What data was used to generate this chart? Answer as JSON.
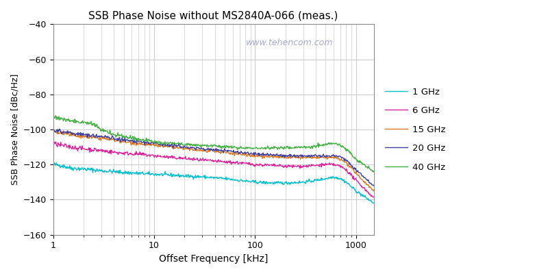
{
  "title": "SSB Phase Noise without MS2840A-066 (meas.)",
  "xlabel": "Offset Frequency [kHz]",
  "ylabel": "SSB Phase Noise [dBc/Hz]",
  "ylim": [
    -160,
    -40
  ],
  "xlim": [
    1,
    1500
  ],
  "yticks": [
    -160,
    -140,
    -120,
    -100,
    -80,
    -60,
    -40
  ],
  "watermark": "www.tehencom.com",
  "watermark_color": "#9999cc",
  "background_color": "#ffffff",
  "grid_color": "#cccccc",
  "series": [
    {
      "label": "1 GHz",
      "color": "#00c0d0",
      "points": [
        [
          1.0,
          -120
        ],
        [
          1.2,
          -120.5
        ],
        [
          1.5,
          -122
        ],
        [
          2,
          -122.5
        ],
        [
          3,
          -123.5
        ],
        [
          4,
          -124
        ],
        [
          5,
          -124.5
        ],
        [
          7,
          -125
        ],
        [
          10,
          -125.5
        ],
        [
          15,
          -126
        ],
        [
          20,
          -126.5
        ],
        [
          30,
          -127
        ],
        [
          50,
          -128
        ],
        [
          70,
          -129
        ],
        [
          100,
          -130
        ],
        [
          150,
          -130.5
        ],
        [
          200,
          -130.5
        ],
        [
          300,
          -130
        ],
        [
          400,
          -129
        ],
        [
          500,
          -128
        ],
        [
          600,
          -127
        ],
        [
          700,
          -128
        ],
        [
          800,
          -130
        ],
        [
          1000,
          -135
        ],
        [
          1500,
          -142
        ]
      ]
    },
    {
      "label": "6 GHz",
      "color": "#e0209a",
      "points": [
        [
          1.0,
          -108
        ],
        [
          1.2,
          -109
        ],
        [
          1.5,
          -110
        ],
        [
          2,
          -111
        ],
        [
          3,
          -112
        ],
        [
          4,
          -113
        ],
        [
          5,
          -113.5
        ],
        [
          7,
          -114
        ],
        [
          10,
          -115
        ],
        [
          15,
          -116
        ],
        [
          20,
          -116.5
        ],
        [
          30,
          -117.5
        ],
        [
          50,
          -118.5
        ],
        [
          70,
          -119
        ],
        [
          100,
          -120
        ],
        [
          150,
          -120.5
        ],
        [
          200,
          -121
        ],
        [
          300,
          -121
        ],
        [
          400,
          -120.5
        ],
        [
          500,
          -120
        ],
        [
          600,
          -120
        ],
        [
          700,
          -121
        ],
        [
          800,
          -123
        ],
        [
          1000,
          -129
        ],
        [
          1500,
          -139
        ]
      ]
    },
    {
      "label": "15 GHz",
      "color": "#e07820",
      "points": [
        [
          1.0,
          -101
        ],
        [
          1.2,
          -102
        ],
        [
          1.5,
          -103
        ],
        [
          2,
          -104
        ],
        [
          3,
          -105
        ],
        [
          4,
          -106
        ],
        [
          5,
          -107
        ],
        [
          7,
          -108
        ],
        [
          10,
          -109
        ],
        [
          15,
          -110
        ],
        [
          20,
          -111
        ],
        [
          30,
          -112
        ],
        [
          50,
          -113
        ],
        [
          70,
          -114
        ],
        [
          100,
          -115
        ],
        [
          150,
          -115.5
        ],
        [
          200,
          -116
        ],
        [
          300,
          -116
        ],
        [
          400,
          -116
        ],
        [
          500,
          -116
        ],
        [
          600,
          -116
        ],
        [
          700,
          -117
        ],
        [
          800,
          -119
        ],
        [
          1000,
          -125
        ],
        [
          1500,
          -135
        ]
      ]
    },
    {
      "label": "20 GHz",
      "color": "#4040a0",
      "points": [
        [
          1.0,
          -100
        ],
        [
          1.2,
          -101
        ],
        [
          1.5,
          -102
        ],
        [
          2,
          -103
        ],
        [
          3,
          -104
        ],
        [
          4,
          -105
        ],
        [
          5,
          -106
        ],
        [
          7,
          -107
        ],
        [
          10,
          -108
        ],
        [
          15,
          -109
        ],
        [
          20,
          -110
        ],
        [
          30,
          -111
        ],
        [
          50,
          -112
        ],
        [
          70,
          -113
        ],
        [
          100,
          -114
        ],
        [
          150,
          -114.5
        ],
        [
          200,
          -115
        ],
        [
          300,
          -115
        ],
        [
          400,
          -115
        ],
        [
          500,
          -115.5
        ],
        [
          600,
          -115
        ],
        [
          700,
          -115.5
        ],
        [
          800,
          -117.5
        ],
        [
          1000,
          -123
        ],
        [
          1500,
          -132
        ]
      ]
    },
    {
      "label": "40 GHz",
      "color": "#40b040",
      "points": [
        [
          1.0,
          -93
        ],
        [
          1.2,
          -94
        ],
        [
          1.5,
          -95
        ],
        [
          2,
          -96
        ],
        [
          2.5,
          -97
        ],
        [
          3,
          -100
        ],
        [
          4,
          -103
        ],
        [
          5,
          -104
        ],
        [
          7,
          -105.5
        ],
        [
          10,
          -107
        ],
        [
          15,
          -108
        ],
        [
          20,
          -108.5
        ],
        [
          30,
          -109
        ],
        [
          50,
          -110
        ],
        [
          70,
          -110.5
        ],
        [
          100,
          -110.5
        ],
        [
          150,
          -110.5
        ],
        [
          200,
          -110.5
        ],
        [
          300,
          -110
        ],
        [
          400,
          -109.5
        ],
        [
          500,
          -108.5
        ],
        [
          600,
          -108
        ],
        [
          700,
          -109
        ],
        [
          800,
          -111
        ],
        [
          1000,
          -117
        ],
        [
          1500,
          -124
        ]
      ]
    }
  ]
}
